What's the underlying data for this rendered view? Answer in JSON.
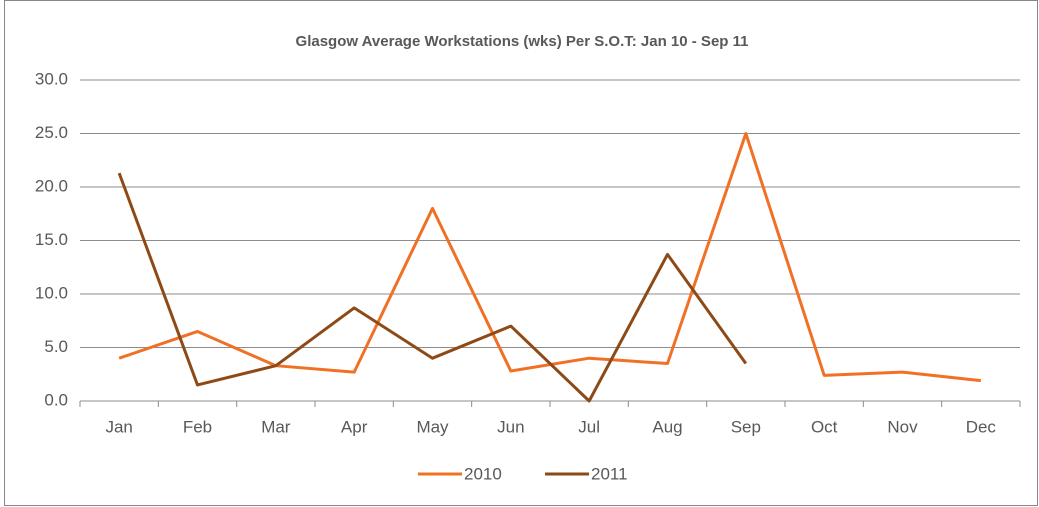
{
  "chart_data": {
    "type": "line",
    "title": "Glasgow Average Workstations (wks) Per S.O.T: Jan 10 - Sep 11",
    "categories": [
      "Jan",
      "Feb",
      "Mar",
      "Apr",
      "May",
      "Jun",
      "Jul",
      "Aug",
      "Sep",
      "Oct",
      "Nov",
      "Dec"
    ],
    "series": [
      {
        "name": "2010",
        "color": "#f07125",
        "values": [
          4.0,
          6.5,
          3.3,
          2.7,
          18.0,
          2.8,
          4.0,
          3.5,
          25.0,
          2.4,
          2.7,
          1.9
        ]
      },
      {
        "name": "2011",
        "color": "#8e4a16",
        "values": [
          21.3,
          1.5,
          3.3,
          8.7,
          4.0,
          7.0,
          0.0,
          13.7,
          3.5,
          null,
          null,
          null
        ]
      }
    ],
    "ylim": [
      0,
      30
    ],
    "yticks": [
      {
        "value": 0,
        "label": "0.0"
      },
      {
        "value": 5,
        "label": "5.0"
      },
      {
        "value": 10,
        "label": "10.0"
      },
      {
        "value": 15,
        "label": "15.0"
      },
      {
        "value": 20,
        "label": "20.0"
      },
      {
        "value": 25,
        "label": "25.0"
      },
      {
        "value": 30,
        "label": "30.0"
      }
    ],
    "grid": true,
    "legend": "bottom"
  }
}
